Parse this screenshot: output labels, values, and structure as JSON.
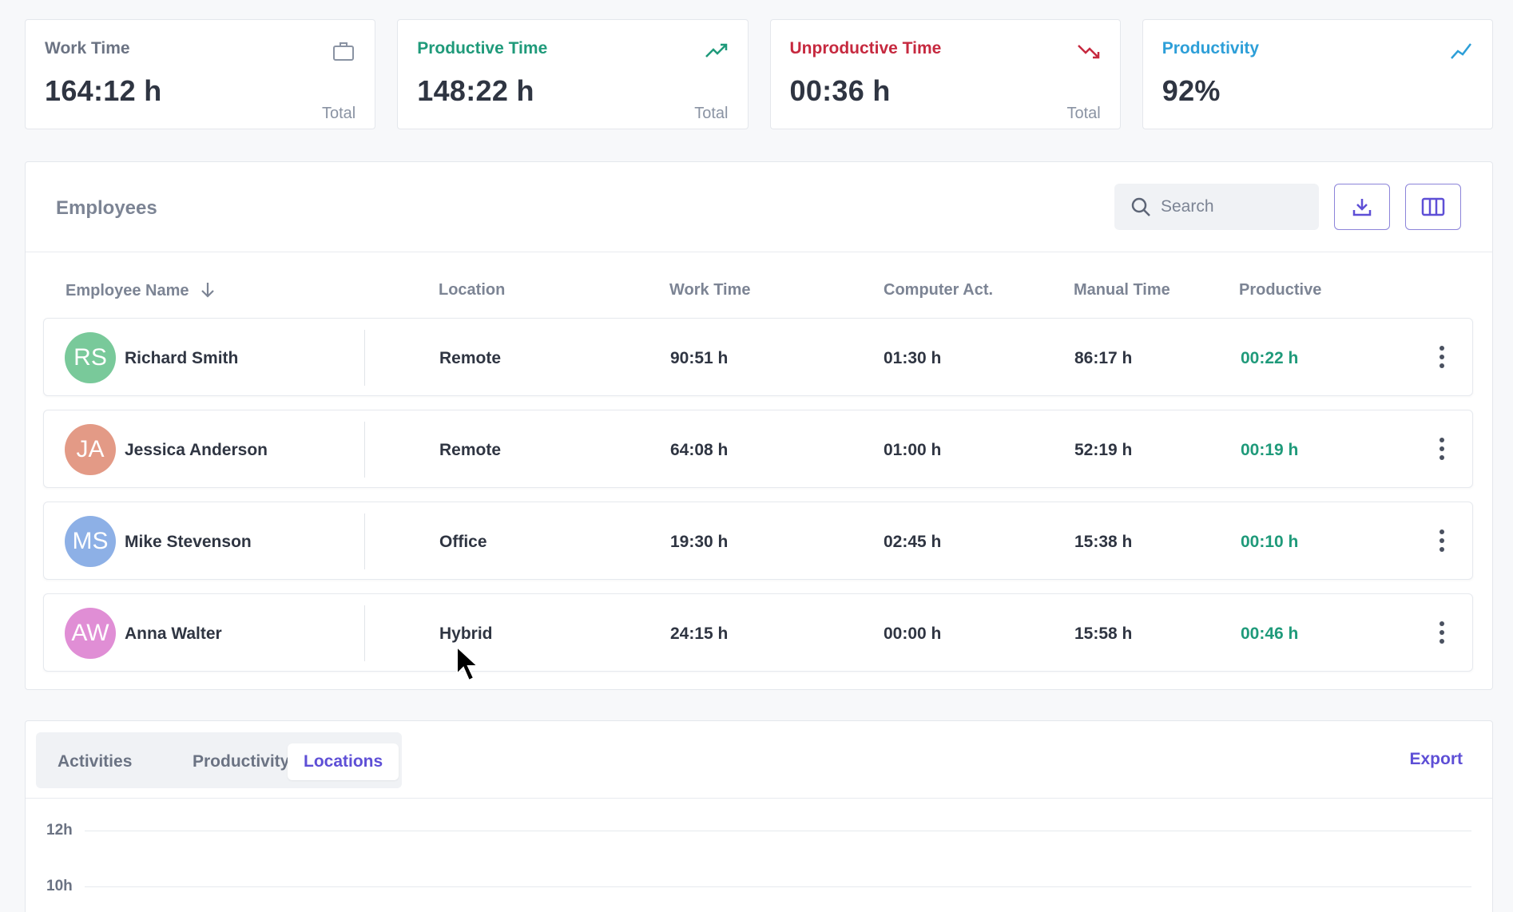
{
  "stats": [
    {
      "label": "Work Time",
      "value": "164:12 h",
      "total": "Total",
      "icon": "briefcase-icon",
      "color": "#6b7383"
    },
    {
      "label": "Productive Time",
      "value": "148:22 h",
      "total": "Total",
      "icon": "trending-up-icon",
      "color": "#1f9a7a"
    },
    {
      "label": "Unproductive Time",
      "value": "00:36 h",
      "total": "Total",
      "icon": "trending-down-icon",
      "color": "#c6293f"
    },
    {
      "label": "Productivity",
      "value": "92%",
      "icon": "line-chart-icon",
      "color": "#2d9fd8"
    }
  ],
  "employees": {
    "title": "Employees",
    "search_placeholder": "Search",
    "columns": [
      "Employee Name",
      "Location",
      "Work Time",
      "Computer Act.",
      "Manual Time",
      "Productive"
    ],
    "rows": [
      {
        "initials": "RS",
        "avatar_color": "#79c99a",
        "name": "Richard Smith",
        "location": "Remote",
        "work_time": "90:51 h",
        "computer_act": "01:30 h",
        "manual_time": "86:17 h",
        "productive": "00:22 h"
      },
      {
        "initials": "JA",
        "avatar_color": "#e39a86",
        "name": "Jessica Anderson",
        "location": "Remote",
        "work_time": "64:08 h",
        "computer_act": "01:00 h",
        "manual_time": "52:19 h",
        "productive": "00:19 h"
      },
      {
        "initials": "MS",
        "avatar_color": "#8db0e6",
        "name": "Mike Stevenson",
        "location": "Office",
        "work_time": "19:30 h",
        "computer_act": "02:45 h",
        "manual_time": "15:38 h",
        "productive": "00:10 h"
      },
      {
        "initials": "AW",
        "avatar_color": "#e08ed5",
        "name": "Anna Walter",
        "location": "Hybrid",
        "work_time": "24:15 h",
        "computer_act": "00:00 h",
        "manual_time": "15:58 h",
        "productive": "00:46 h"
      }
    ]
  },
  "chart_panel": {
    "tabs": [
      "Activities",
      "Productivity",
      "Locations"
    ],
    "active_tab": "Locations",
    "export_label": "Export",
    "y_ticks": [
      "12h",
      "10h"
    ]
  },
  "colors": {
    "accent": "#5e4fd6",
    "productive": "#1f9a7a",
    "unproductive": "#c6293f",
    "productivity": "#2d9fd8"
  }
}
